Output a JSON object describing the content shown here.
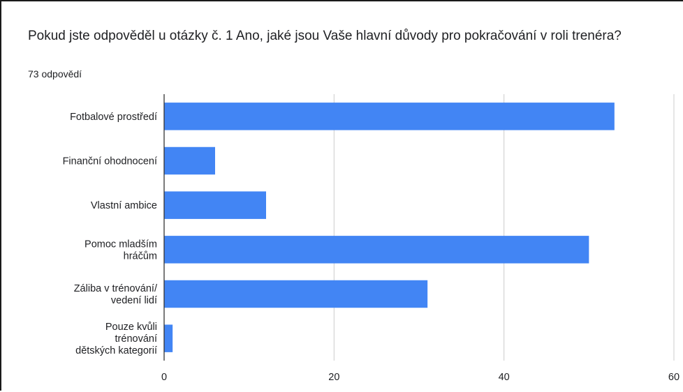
{
  "title": "Pokud jste odpověděl u otázky č. 1 Ano, jaké jsou Vaše hlavní důvody pro pokračování v roli trenéra?",
  "subtitle": "73 odpovědí",
  "chart_data": {
    "type": "bar",
    "orientation": "horizontal",
    "categories": [
      [
        "Fotbalové prostředí"
      ],
      [
        "Finanční ohodnocení"
      ],
      [
        "Vlastní ambice"
      ],
      [
        "Pomoc mladším",
        "hráčům"
      ],
      [
        "Záliba v trénování/",
        "vedení lidí"
      ],
      [
        "Pouze kvůli",
        "trénování",
        "dětských kategorií"
      ]
    ],
    "values": [
      53,
      6,
      12,
      50,
      31,
      1
    ],
    "xlim": [
      0,
      60
    ],
    "xticks": [
      0,
      20,
      40,
      60
    ],
    "grid": true,
    "bar_color": "#4285f4",
    "title": "Pokud jste odpověděl u otázky č. 1 Ano, jaké jsou Vaše hlavní důvody pro pokračování v roli trenéra?",
    "xlabel": "",
    "ylabel": ""
  }
}
